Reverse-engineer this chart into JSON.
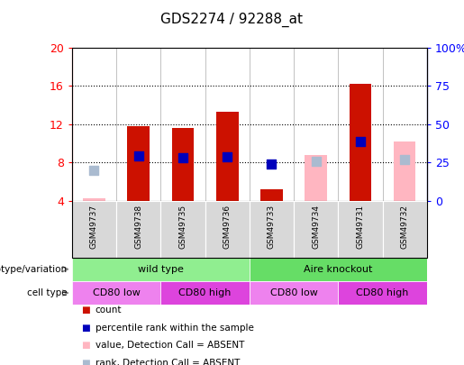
{
  "title": "GDS2274 / 92288_at",
  "samples": [
    "GSM49737",
    "GSM49738",
    "GSM49735",
    "GSM49736",
    "GSM49733",
    "GSM49734",
    "GSM49731",
    "GSM49732"
  ],
  "ylim_left": [
    4,
    20
  ],
  "ylim_right": [
    0,
    100
  ],
  "yticks_left": [
    4,
    8,
    12,
    16,
    20
  ],
  "yticks_right": [
    0,
    25,
    50,
    75,
    100
  ],
  "yticklabels_right": [
    "0",
    "25",
    "50",
    "75",
    "100%"
  ],
  "red_bars": {
    "GSM49737": null,
    "GSM49738": 11.8,
    "GSM49735": 11.6,
    "GSM49736": 13.3,
    "GSM49733": 5.2,
    "GSM49734": null,
    "GSM49731": 16.2,
    "GSM49732": null
  },
  "blue_dots_left": {
    "GSM49737": null,
    "GSM49738": 8.7,
    "GSM49735": 8.5,
    "GSM49736": 8.6,
    "GSM49733": 7.8,
    "GSM49734": null,
    "GSM49731": 10.2,
    "GSM49732": null
  },
  "pink_bars": {
    "GSM49737": 4.3,
    "GSM49738": null,
    "GSM49735": null,
    "GSM49736": null,
    "GSM49733": null,
    "GSM49734": 8.8,
    "GSM49731": null,
    "GSM49732": 10.2
  },
  "lightblue_dots_left": {
    "GSM49737": 7.2,
    "GSM49738": null,
    "GSM49735": null,
    "GSM49736": null,
    "GSM49733": null,
    "GSM49734": 8.1,
    "GSM49731": null,
    "GSM49732": 8.3
  },
  "genotype_groups": [
    {
      "label": "wild type",
      "start": 0,
      "end": 4,
      "color": "#90EE90"
    },
    {
      "label": "Aire knockout",
      "start": 4,
      "end": 8,
      "color": "#66DD66"
    }
  ],
  "cell_type_groups": [
    {
      "label": "CD80 low",
      "start": 0,
      "end": 2,
      "color": "#EE82EE"
    },
    {
      "label": "CD80 high",
      "start": 2,
      "end": 4,
      "color": "#DD44DD"
    },
    {
      "label": "CD80 low",
      "start": 4,
      "end": 6,
      "color": "#EE82EE"
    },
    {
      "label": "CD80 high",
      "start": 6,
      "end": 8,
      "color": "#DD44DD"
    }
  ],
  "red_color": "#CC1100",
  "blue_color": "#0000BB",
  "pink_color": "#FFB6C1",
  "lightblue_color": "#AABBD0",
  "bar_width": 0.5,
  "dot_size": 55,
  "legend_labels": [
    "count",
    "percentile rank within the sample",
    "value, Detection Call = ABSENT",
    "rank, Detection Call = ABSENT"
  ]
}
